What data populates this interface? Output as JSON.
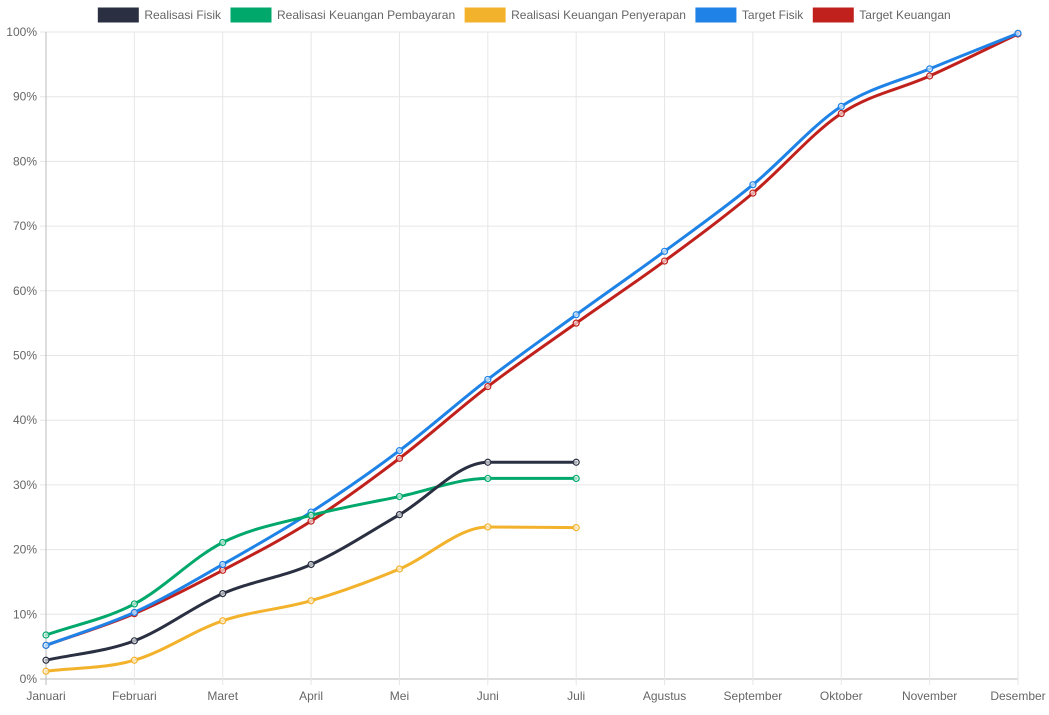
{
  "chart_data": {
    "type": "line",
    "categories": [
      "Januari",
      "Februari",
      "Maret",
      "April",
      "Mei",
      "Juni",
      "Juli",
      "Agustus",
      "September",
      "Oktober",
      "November",
      "Desember"
    ],
    "y_ticks": [
      "0%",
      "10%",
      "20%",
      "30%",
      "40%",
      "50%",
      "60%",
      "70%",
      "80%",
      "90%",
      "100%"
    ],
    "ylim": [
      0,
      100
    ],
    "y_unit": "%",
    "grid": true,
    "legend_position": "top",
    "series": [
      {
        "name": "Realisasi Fisik",
        "color": "#2a3042",
        "values": [
          2.9,
          5.9,
          13.2,
          17.7,
          25.4,
          33.5,
          33.5,
          null,
          null,
          null,
          null,
          null
        ]
      },
      {
        "name": "Realisasi Keuangan Pembayaran",
        "color": "#00a86b",
        "values": [
          6.8,
          11.6,
          21.1,
          25.3,
          28.2,
          31.0,
          31.0,
          null,
          null,
          null,
          null,
          null
        ]
      },
      {
        "name": "Realisasi Keuangan Penyerapan",
        "color": "#f3b22b",
        "values": [
          1.2,
          2.9,
          9.0,
          12.1,
          17.0,
          23.5,
          23.4,
          null,
          null,
          null,
          null,
          null
        ]
      },
      {
        "name": "Target Fisik",
        "color": "#1e82e6",
        "values": [
          5.2,
          10.3,
          17.7,
          25.8,
          35.3,
          46.3,
          56.3,
          66.1,
          76.4,
          88.5,
          94.3,
          99.8
        ]
      },
      {
        "name": "Target Keuangan",
        "color": "#c0211c",
        "values": [
          5.2,
          10.1,
          16.8,
          24.4,
          34.1,
          45.2,
          55.0,
          64.6,
          75.1,
          87.4,
          93.2,
          99.7
        ]
      }
    ]
  }
}
